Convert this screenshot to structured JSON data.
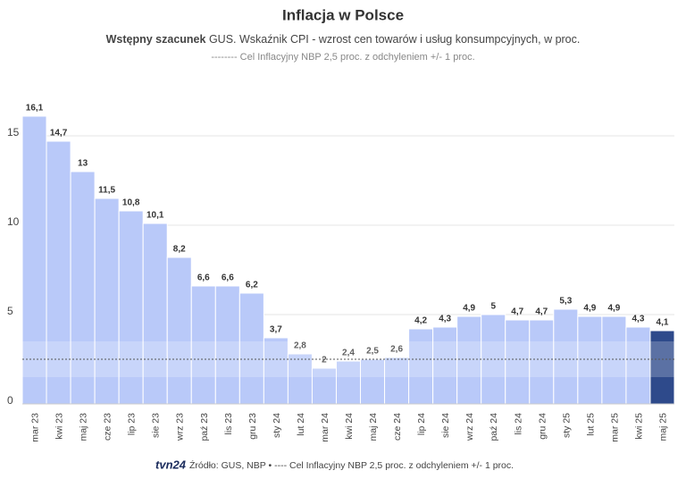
{
  "chart_data": {
    "type": "bar",
    "title": "Inflacja w Polsce",
    "subtitle_bold": "Wstępny szacunek",
    "subtitle": "GUS. Wskaźnik CPI - wzrost cen towarów i usług konsumpcyjnych, w proc.",
    "note": "-------- Cel Inflacyjny NBP 2,5 proc. z odchyleniem +/- 1 proc.",
    "logo": "tvn24",
    "source": "Źródło: GUS, NBP • ---- Cel Inflacyjny NBP 2,5 proc. z odchyleniem +/- 1 proc.",
    "categories": [
      "mar 23",
      "kwi 23",
      "maj 23",
      "cze 23",
      "lip 23",
      "sie 23",
      "wrz 23",
      "paź 23",
      "lis 23",
      "gru 23",
      "sty 24",
      "lut 24",
      "mar 24",
      "kwi 24",
      "maj 24",
      "cze 24",
      "lip 24",
      "sie 24",
      "wrz 24",
      "paź 24",
      "lis 24",
      "gru 24",
      "sty 25",
      "lut 25",
      "mar 25",
      "kwi 25",
      "maj 25"
    ],
    "values": [
      16.1,
      14.7,
      13,
      11.5,
      10.8,
      10.1,
      8.2,
      6.6,
      6.6,
      6.2,
      3.7,
      2.8,
      2,
      2.4,
      2.5,
      2.6,
      4.2,
      4.3,
      4.9,
      5,
      4.7,
      4.7,
      5.3,
      4.9,
      4.9,
      4.3,
      4.1
    ],
    "value_labels": [
      "16,1",
      "14,7",
      "13",
      "11,5",
      "10,8",
      "10,1",
      "8,2",
      "6,6",
      "6,6",
      "6,2",
      "3,7",
      "2,8",
      "2",
      "2,4",
      "2,5",
      "2,6",
      "4,2",
      "4,3",
      "4,9",
      "5",
      "4,7",
      "4,7",
      "5,3",
      "4,9",
      "4,9",
      "4,3",
      "4,1"
    ],
    "colors": [
      "#b9c9f9",
      "#b9c9f9",
      "#b9c9f9",
      "#b9c9f9",
      "#b9c9f9",
      "#b9c9f9",
      "#b9c9f9",
      "#b9c9f9",
      "#b9c9f9",
      "#b9c9f9",
      "#b9c9f9",
      "#b9c9f9",
      "#b9c9f9",
      "#b9c9f9",
      "#b9c9f9",
      "#b9c9f9",
      "#b9c9f9",
      "#b9c9f9",
      "#b9c9f9",
      "#b9c9f9",
      "#b9c9f9",
      "#b9c9f9",
      "#b9c9f9",
      "#b9c9f9",
      "#b9c9f9",
      "#b9c9f9",
      "#2e4a8b"
    ],
    "reference_line": 2.5,
    "reference_band": [
      1.5,
      3.5
    ],
    "ylim": [
      0,
      18
    ],
    "yticks": [
      0,
      5,
      10,
      15
    ],
    "grid": true
  }
}
